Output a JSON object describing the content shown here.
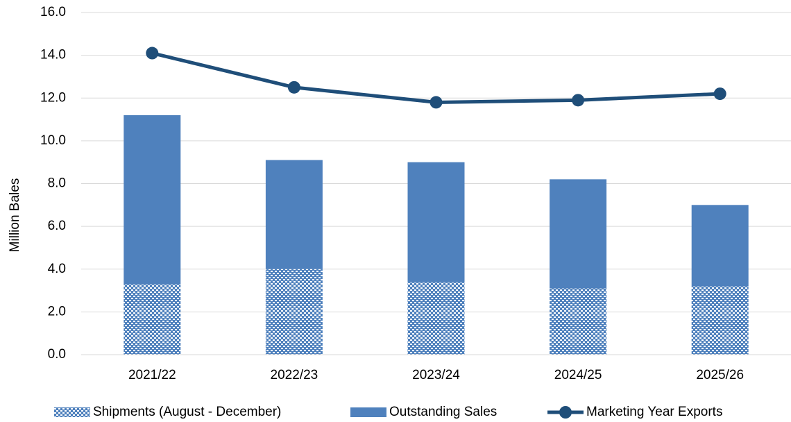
{
  "chart_data": {
    "type": "bar",
    "stacked": true,
    "y_label": "Million Bales",
    "categories": [
      "2021/22",
      "2022/23",
      "2023/24",
      "2024/25",
      "2025/26"
    ],
    "series": [
      {
        "name": "Shipments (August - December)",
        "color": "#4f81bd",
        "pattern": "dotted",
        "values": [
          3.3,
          4.0,
          3.4,
          3.1,
          3.2
        ]
      },
      {
        "name": "Outstanding Sales",
        "color": "#4f81bd",
        "values": [
          7.9,
          5.1,
          5.6,
          5.1,
          3.8
        ]
      },
      {
        "name": "Marketing Year Exports",
        "color": "#1f4e79",
        "type": "line",
        "values": [
          14.1,
          12.5,
          11.8,
          11.9,
          12.2
        ]
      }
    ],
    "ylim": [
      0,
      16
    ],
    "yticks": [
      {
        "value": 0,
        "label": "0.0"
      },
      {
        "value": 2,
        "label": "2.0"
      },
      {
        "value": 4,
        "label": "4.0"
      },
      {
        "value": 6,
        "label": "6.0"
      },
      {
        "value": 8,
        "label": "8.0"
      },
      {
        "value": 10,
        "label": "10.0"
      },
      {
        "value": 12,
        "label": "12.0"
      },
      {
        "value": 14,
        "label": "14.0"
      },
      {
        "value": 16,
        "label": "16.0"
      }
    ],
    "grid": true
  }
}
